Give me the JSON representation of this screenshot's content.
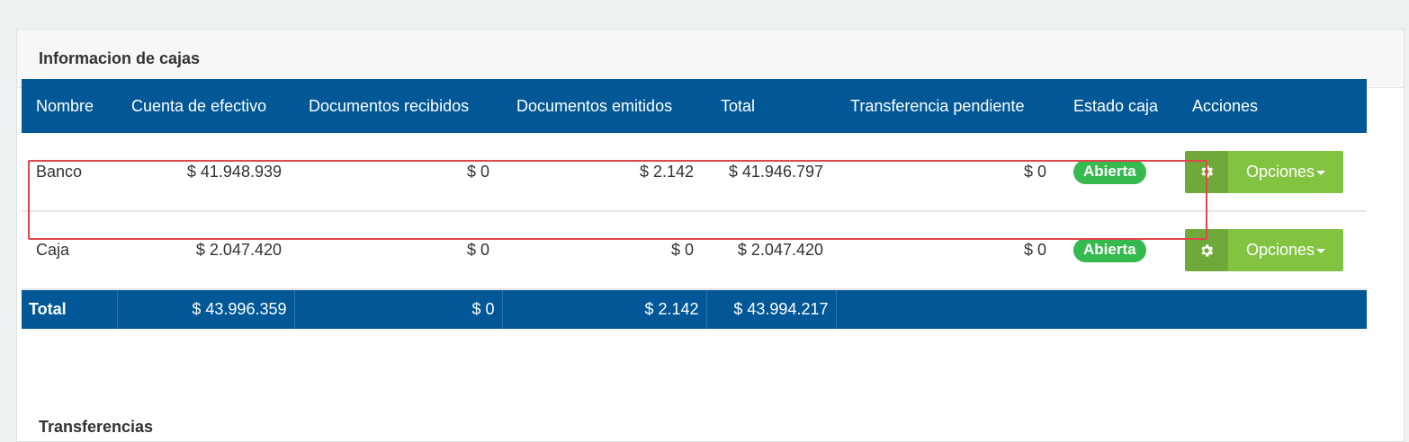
{
  "panel": {
    "title": "Informacion de cajas"
  },
  "table": {
    "headers": [
      "Nombre",
      "Cuenta de efectivo",
      "Documentos recibidos",
      "Documentos emitidos",
      "Total",
      "Transferencia pendiente",
      "Estado caja",
      "Acciones"
    ],
    "rows": [
      {
        "name": "Banco",
        "cuenta": "$ 41.948.939",
        "recibidos": "$ 0",
        "emitidos": "$ 2.142",
        "total": "$ 41.946.797",
        "pendiente": "$ 0",
        "estado": "Abierta",
        "accion": "Opciones"
      },
      {
        "name": "Caja",
        "cuenta": "$ 2.047.420",
        "recibidos": "$ 0",
        "emitidos": "$ 0",
        "total": "$ 2.047.420",
        "pendiente": "$ 0",
        "estado": "Abierta",
        "accion": "Opciones"
      }
    ],
    "totals": {
      "label": "Total",
      "cuenta": "$ 43.996.359",
      "recibidos": "$ 0",
      "emitidos": "$ 2.142",
      "total": "$ 43.994.217"
    }
  },
  "transferencias": {
    "title": "Transferencias"
  },
  "colors": {
    "header_bg": "#025897",
    "badge": "#36b94e",
    "button": "#82c341",
    "button_icon": "#6fa93a",
    "highlight": "#e0464c"
  },
  "icons": {
    "options": "gear-icon"
  }
}
